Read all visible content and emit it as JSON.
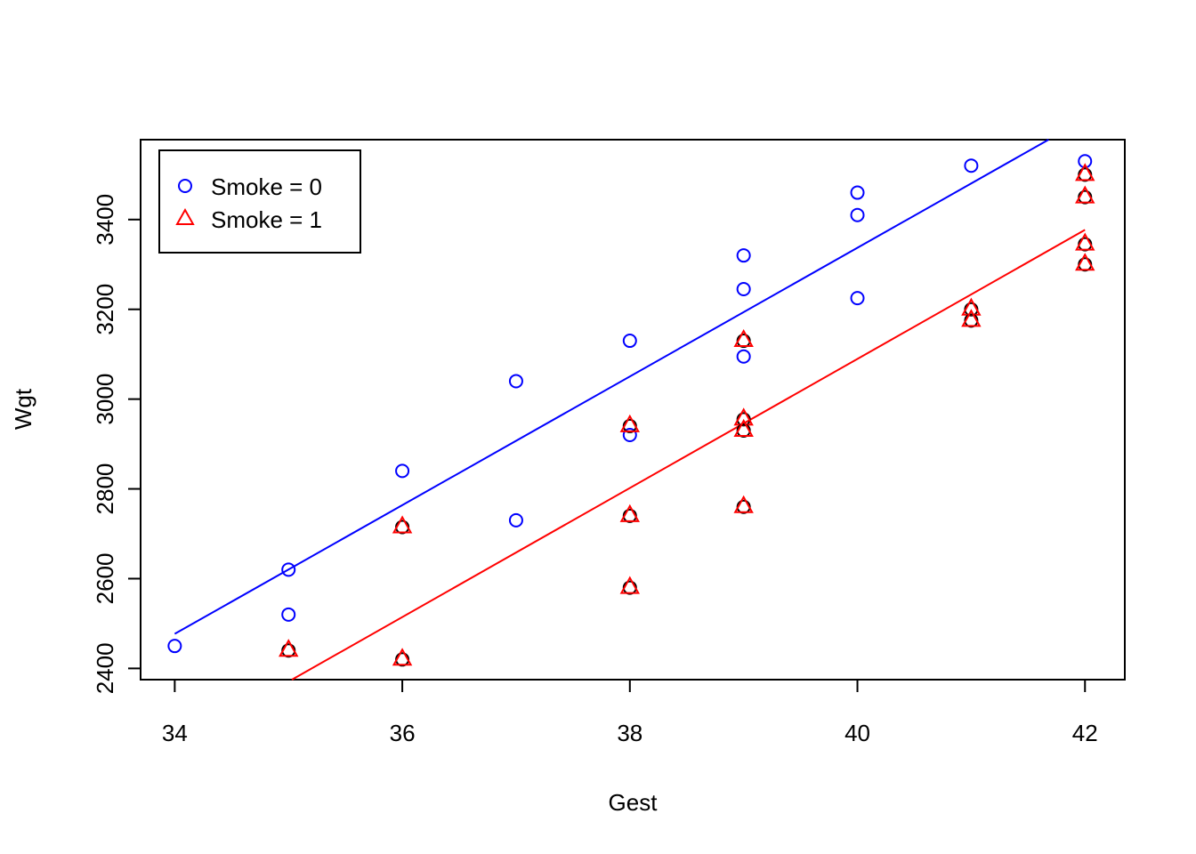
{
  "chart_data": {
    "type": "scatter",
    "title": "",
    "xlabel": "Gest",
    "ylabel": "Wgt",
    "xlim": [
      33.7,
      42.35
    ],
    "ylim": [
      2375,
      3578
    ],
    "xticks": [
      "34",
      "36",
      "38",
      "40",
      "42"
    ],
    "yticks": [
      "2400",
      "2600",
      "2800",
      "3000",
      "3200",
      "3400"
    ],
    "grid": false,
    "legend_position": "top-left",
    "series": [
      {
        "name": "Smoke = 0",
        "color": "#0000ff",
        "marker": "circle",
        "points": [
          [
            34,
            2450
          ],
          [
            35,
            2620
          ],
          [
            35,
            2520
          ],
          [
            36,
            2840
          ],
          [
            37,
            3040
          ],
          [
            37,
            2730
          ],
          [
            38,
            3130
          ],
          [
            38,
            2920
          ],
          [
            39,
            3320
          ],
          [
            39,
            3245
          ],
          [
            39,
            3095
          ],
          [
            40,
            3460
          ],
          [
            40,
            3410
          ],
          [
            40,
            3225
          ],
          [
            41,
            3520
          ],
          [
            42,
            3530
          ]
        ],
        "fit_line": [
          [
            34,
            2477
          ],
          [
            41.68,
            3578
          ]
        ]
      },
      {
        "name": "Smoke = 1",
        "color": "#ff0000",
        "marker": "triangle",
        "points": [
          [
            35,
            2440
          ],
          [
            36,
            2715
          ],
          [
            36,
            2420
          ],
          [
            38,
            2940
          ],
          [
            38,
            2740
          ],
          [
            38,
            2580
          ],
          [
            39,
            3130
          ],
          [
            39,
            2955
          ],
          [
            39,
            2930
          ],
          [
            39,
            2760
          ],
          [
            41,
            3200
          ],
          [
            41,
            3175
          ],
          [
            42,
            3500
          ],
          [
            42,
            3450
          ],
          [
            42,
            3345
          ],
          [
            42,
            3300
          ]
        ],
        "fit_line": [
          [
            35.03,
            2375
          ],
          [
            42,
            3377
          ]
        ]
      }
    ]
  }
}
